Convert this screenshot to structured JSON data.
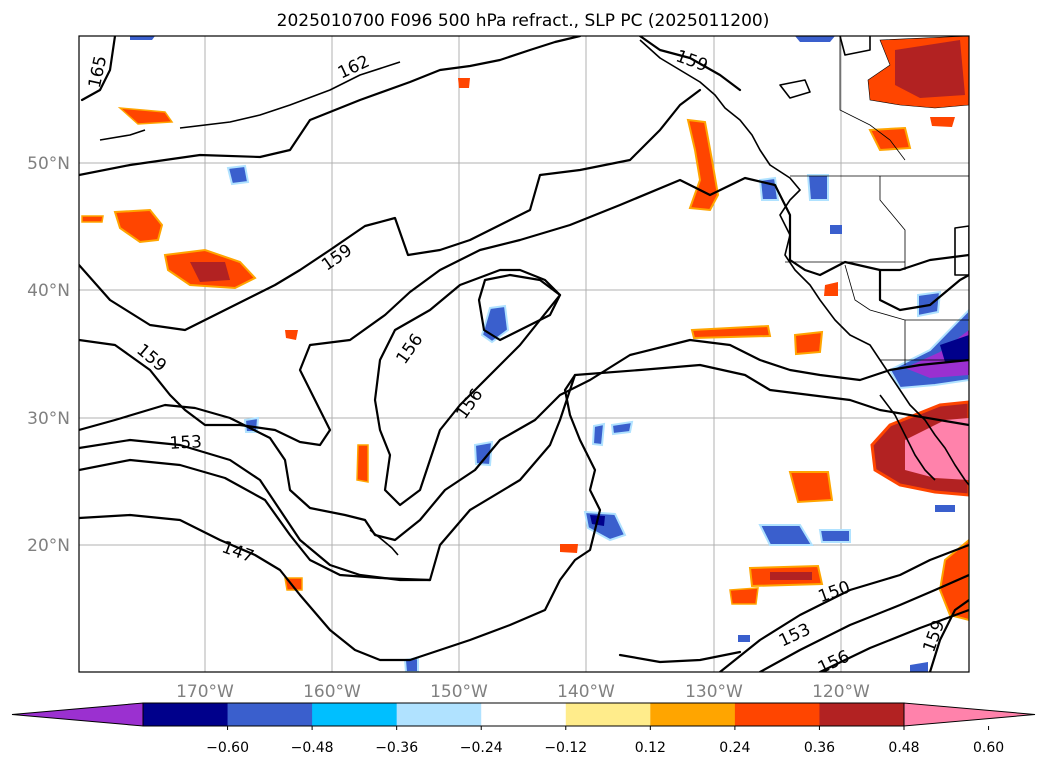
{
  "title": "2025010700 F096 500 hPa refract., SLP PC (2025011200)",
  "lat_labels": [
    "50°N",
    "40°N",
    "30°N",
    "20°N"
  ],
  "lon_labels": [
    "170°W",
    "160°W",
    "150°W",
    "140°W",
    "130°W",
    "120°W"
  ],
  "colorbar": {
    "ticks": [
      "−0.60",
      "−0.48",
      "−0.36",
      "−0.24",
      "−0.12",
      "0.12",
      "0.24",
      "0.36",
      "0.48",
      "0.60"
    ],
    "colors": [
      "#9b30d0",
      "#00008b",
      "#3a5fcd",
      "#00bfff",
      "#b0e2ff",
      "#ffffff",
      "#ffec8b",
      "#ffa500",
      "#ff4500",
      "#b22222",
      "#ff82ab"
    ]
  },
  "contour_labels": [
    "165",
    "162",
    "159",
    "159",
    "159",
    "156",
    "156",
    "153",
    "147",
    "150",
    "153",
    "156",
    "159"
  ]
}
